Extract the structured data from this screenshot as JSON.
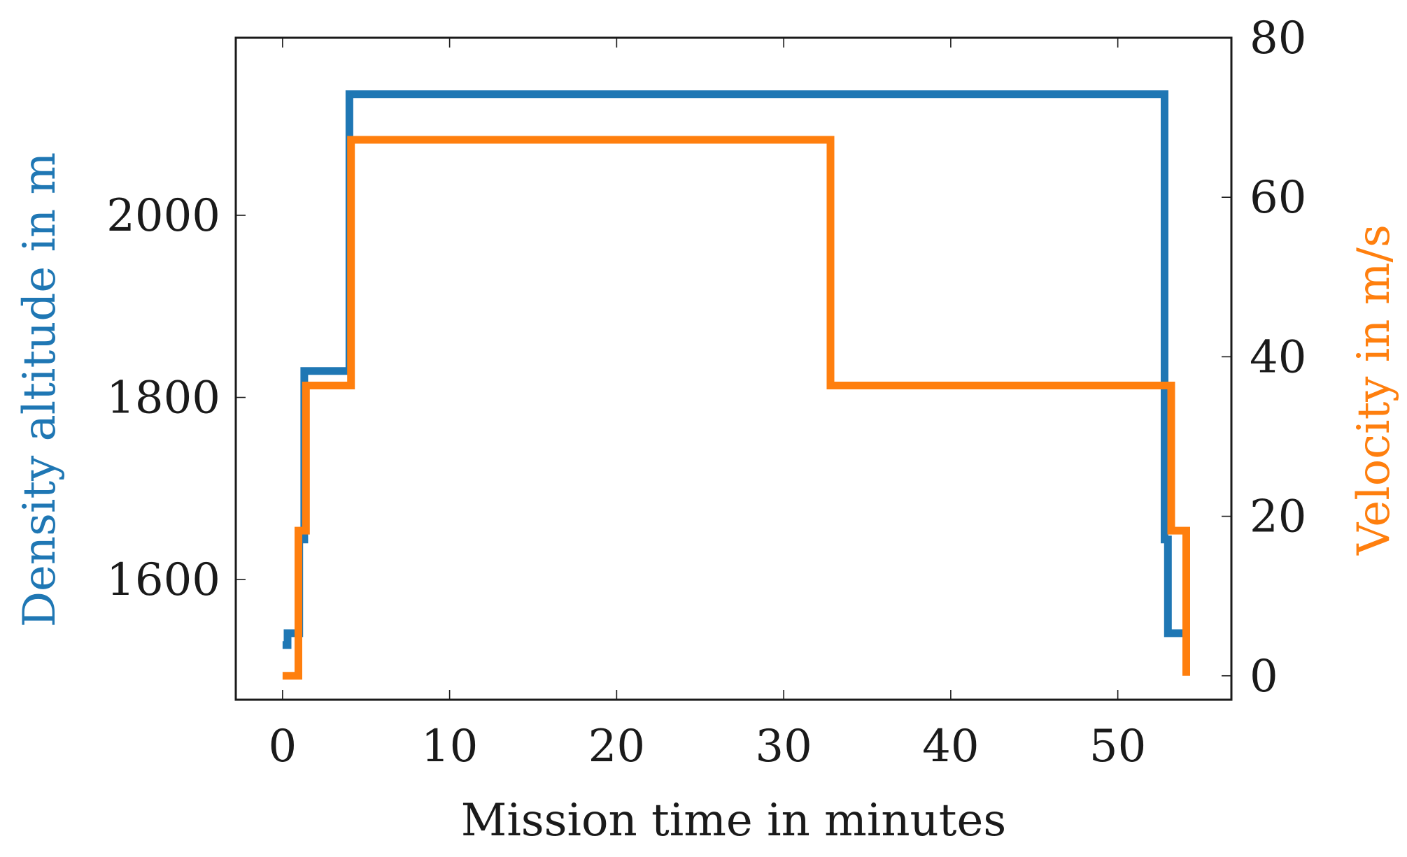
{
  "chart_data": {
    "type": "line",
    "title": "",
    "xlabel": "Mission time in minutes",
    "ylabel_left": "Density altitude in m",
    "ylabel_right": "Velocity in m/s",
    "xlim": [
      -2.8,
      56.8
    ],
    "ylim_left": [
      1468,
      2195
    ],
    "ylim_right": [
      -3,
      80
    ],
    "x_ticks": [
      0,
      10,
      20,
      30,
      40,
      50
    ],
    "y_ticks_left": [
      1600,
      1800,
      2000
    ],
    "y_ticks_right": [
      0,
      20,
      40,
      60,
      80
    ],
    "grid": false,
    "legend": "none",
    "series": [
      {
        "axis": "left",
        "color": "#1f77b4",
        "step": true,
        "x": [
          0,
          0.3,
          1,
          1.3,
          4,
          52.8,
          53.0,
          54.1
        ],
        "y": [
          1528,
          1541,
          1644,
          1829,
          2133,
          1644,
          1541,
          1528
        ]
      },
      {
        "axis": "right",
        "color": "#ff7f0e",
        "step": true,
        "x": [
          0,
          0.95,
          1.4,
          4.1,
          32.8,
          53.2,
          54.1
        ],
        "y": [
          0,
          18.2,
          36.4,
          67.2,
          36.4,
          18.2,
          0
        ]
      }
    ]
  }
}
